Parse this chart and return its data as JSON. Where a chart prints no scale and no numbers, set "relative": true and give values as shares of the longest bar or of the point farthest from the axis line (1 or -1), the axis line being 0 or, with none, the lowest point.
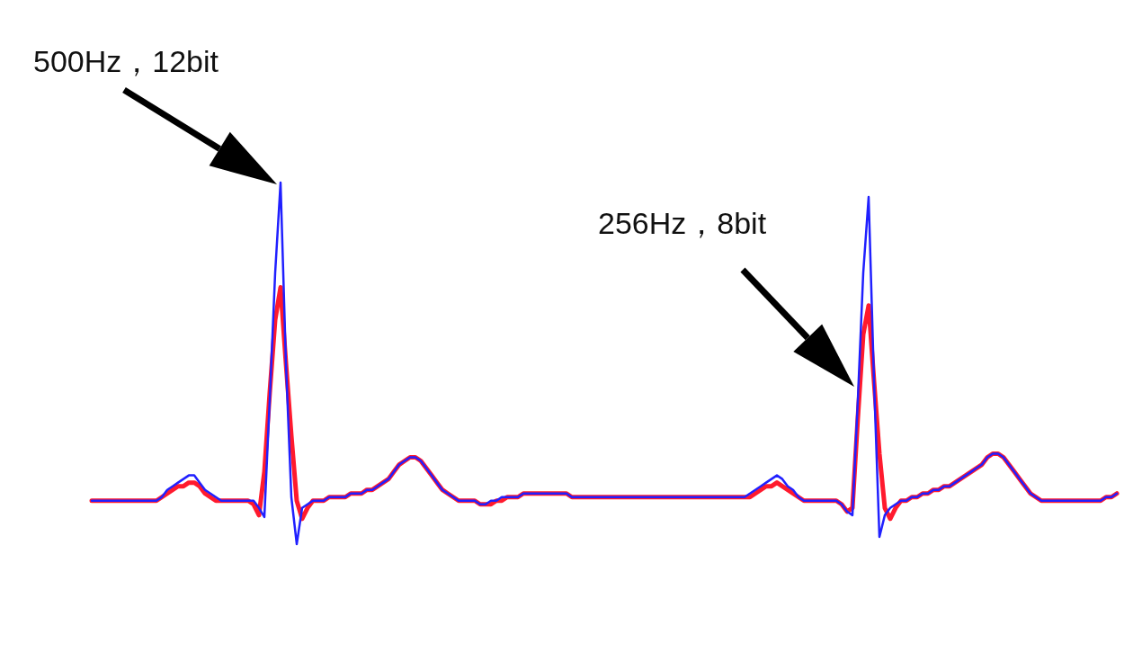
{
  "chart_data": {
    "type": "line",
    "relative": true,
    "line_style": "solid",
    "marker": "none",
    "grid": false,
    "annotations": [
      "500Hz，12bit",
      "256Hz，8bit"
    ],
    "categories": [
      null,
      null,
      null,
      null,
      null,
      null,
      null,
      null,
      null,
      null,
      null,
      null,
      null,
      null,
      null,
      null,
      null,
      null,
      null,
      null,
      null,
      null,
      null,
      null,
      null,
      null,
      null,
      null,
      null,
      null,
      null,
      null,
      null,
      null,
      null,
      null,
      null,
      null,
      null,
      null,
      null,
      null,
      null,
      null,
      null,
      null,
      null,
      null,
      null,
      null,
      null,
      null,
      null,
      null,
      null,
      null,
      null,
      null,
      null,
      null,
      null,
      null,
      null,
      null,
      null,
      null,
      null,
      null,
      null,
      null,
      null,
      null,
      null,
      null,
      null,
      null,
      null,
      null,
      null,
      null,
      null,
      null,
      null,
      null,
      null,
      null,
      null,
      null,
      null,
      null,
      null,
      null,
      null,
      null,
      null,
      null,
      null,
      null,
      null,
      null,
      null,
      null,
      null,
      null,
      null,
      null,
      null,
      null,
      null,
      null,
      null,
      null,
      null,
      null,
      null,
      null,
      null,
      null,
      null,
      null,
      null,
      null,
      null,
      null,
      null,
      null,
      null,
      null,
      null,
      null,
      null,
      null,
      null,
      null,
      null,
      null,
      null,
      null,
      null,
      null,
      null,
      null,
      null,
      null,
      null,
      null,
      null,
      null,
      null,
      null,
      null,
      null,
      null,
      null,
      null,
      null,
      null,
      null,
      null,
      null,
      null,
      null,
      null,
      null,
      null,
      null,
      null,
      null,
      null,
      null,
      null,
      null,
      null,
      null,
      null,
      null,
      null,
      null,
      null,
      null,
      null,
      null,
      null,
      null,
      null,
      null,
      null,
      null,
      null,
      null,
      null
    ],
    "series": [
      {
        "color": "#2020ff",
        "values": [
          0.12,
          0.12,
          0.12,
          0.12,
          0.12,
          0.12,
          0.12,
          0.12,
          0.12,
          0.12,
          0.12,
          0.12,
          0.12,
          0.13,
          0.15,
          0.16,
          0.17,
          0.18,
          0.19,
          0.19,
          0.17,
          0.15,
          0.14,
          0.13,
          0.12,
          0.12,
          0.12,
          0.12,
          0.12,
          0.12,
          0.12,
          0.1,
          0.075,
          0.4,
          0.75,
          1.0,
          0.5,
          0.13,
          0,
          0.1,
          0.11,
          0.12,
          0.12,
          0.12,
          0.13,
          0.13,
          0.13,
          0.13,
          0.14,
          0.14,
          0.14,
          0.15,
          0.15,
          0.16,
          0.17,
          0.18,
          0.2,
          0.22,
          0.23,
          0.24,
          0.24,
          0.23,
          0.21,
          0.19,
          0.17,
          0.15,
          0.14,
          0.13,
          0.12,
          0.12,
          0.12,
          0.12,
          0.11,
          0.11,
          0.12,
          0.12,
          0.13,
          0.13,
          0.13,
          0.13,
          0.14,
          0.14,
          0.14,
          0.14,
          0.14,
          0.14,
          0.14,
          0.14,
          0.14,
          0.13,
          0.13,
          0.13,
          0.13,
          0.13,
          0.13,
          0.13,
          0.13,
          0.13,
          0.13,
          0.13,
          0.13,
          0.13,
          0.13,
          0.13,
          0.13,
          0.13,
          0.13,
          0.13,
          0.13,
          0.13,
          0.13,
          0.13,
          0.13,
          0.13,
          0.13,
          0.13,
          0.13,
          0.13,
          0.13,
          0.13,
          0.13,
          0.13,
          0.14,
          0.15,
          0.16,
          0.17,
          0.18,
          0.19,
          0.18,
          0.16,
          0.15,
          0.13,
          0.12,
          0.12,
          0.12,
          0.12,
          0.12,
          0.12,
          0.12,
          0.11,
          0.09,
          0.08,
          0.4,
          0.75,
          0.96,
          0.45,
          0.02,
          0.08,
          0.1,
          0.11,
          0.12,
          0.12,
          0.13,
          0.13,
          0.14,
          0.14,
          0.15,
          0.15,
          0.16,
          0.16,
          0.17,
          0.18,
          0.19,
          0.2,
          0.21,
          0.22,
          0.24,
          0.25,
          0.25,
          0.24,
          0.22,
          0.2,
          0.18,
          0.16,
          0.14,
          0.13,
          0.12,
          0.12,
          0.12,
          0.12,
          0.12,
          0.12,
          0.12,
          0.12,
          0.12,
          0.12,
          0.12,
          0.12,
          0.13,
          0.13,
          0.14
        ]
      },
      {
        "color": "#ff1a2e",
        "values": [
          0.12,
          0.12,
          0.12,
          0.12,
          0.12,
          0.12,
          0.12,
          0.12,
          0.12,
          0.12,
          0.12,
          0.12,
          0.12,
          0.13,
          0.14,
          0.15,
          0.16,
          0.16,
          0.17,
          0.17,
          0.16,
          0.14,
          0.13,
          0.12,
          0.12,
          0.12,
          0.12,
          0.12,
          0.12,
          0.12,
          0.11,
          0.08,
          0.2,
          0.42,
          0.62,
          0.71,
          0.5,
          0.3,
          0.12,
          0.07,
          0.1,
          0.12,
          0.12,
          0.12,
          0.13,
          0.13,
          0.13,
          0.13,
          0.14,
          0.14,
          0.14,
          0.15,
          0.15,
          0.16,
          0.17,
          0.18,
          0.2,
          0.22,
          0.23,
          0.24,
          0.24,
          0.23,
          0.21,
          0.19,
          0.17,
          0.15,
          0.14,
          0.13,
          0.12,
          0.12,
          0.12,
          0.12,
          0.11,
          0.11,
          0.11,
          0.12,
          0.12,
          0.13,
          0.13,
          0.13,
          0.14,
          0.14,
          0.14,
          0.14,
          0.14,
          0.14,
          0.14,
          0.14,
          0.14,
          0.13,
          0.13,
          0.13,
          0.13,
          0.13,
          0.13,
          0.13,
          0.13,
          0.13,
          0.13,
          0.13,
          0.13,
          0.13,
          0.13,
          0.13,
          0.13,
          0.13,
          0.13,
          0.13,
          0.13,
          0.13,
          0.13,
          0.13,
          0.13,
          0.13,
          0.13,
          0.13,
          0.13,
          0.13,
          0.13,
          0.13,
          0.13,
          0.13,
          0.13,
          0.14,
          0.15,
          0.16,
          0.16,
          0.17,
          0.16,
          0.15,
          0.14,
          0.13,
          0.12,
          0.12,
          0.12,
          0.12,
          0.12,
          0.12,
          0.12,
          0.11,
          0.09,
          0.1,
          0.35,
          0.58,
          0.66,
          0.45,
          0.25,
          0.1,
          0.07,
          0.1,
          0.12,
          0.12,
          0.13,
          0.13,
          0.14,
          0.14,
          0.15,
          0.15,
          0.16,
          0.16,
          0.17,
          0.18,
          0.19,
          0.2,
          0.21,
          0.22,
          0.24,
          0.25,
          0.25,
          0.24,
          0.22,
          0.2,
          0.18,
          0.16,
          0.14,
          0.13,
          0.12,
          0.12,
          0.12,
          0.12,
          0.12,
          0.12,
          0.12,
          0.12,
          0.12,
          0.12,
          0.12,
          0.12,
          0.13,
          0.13,
          0.14
        ]
      }
    ]
  }
}
